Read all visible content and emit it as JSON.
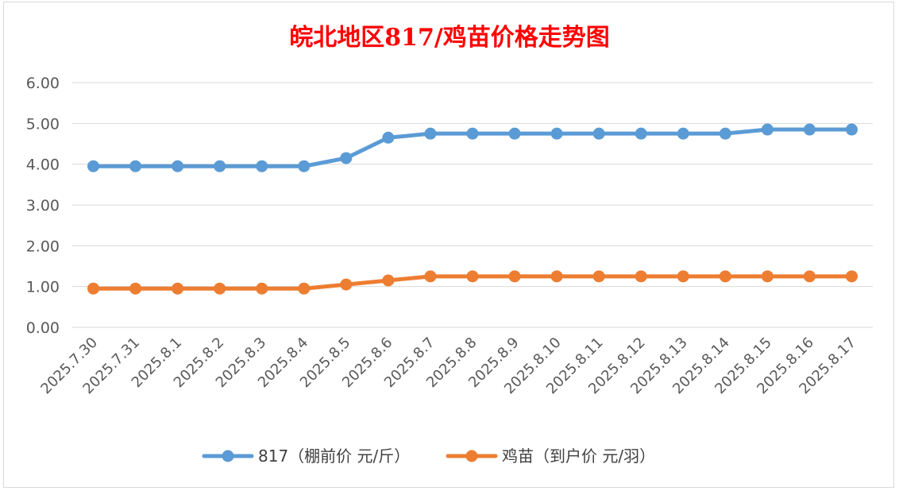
{
  "chart_data": {
    "type": "line",
    "title": "皖北地区817/鸡苗价格走势图",
    "xlabel": "",
    "ylabel": "",
    "ylim": [
      0,
      6
    ],
    "yticks": [
      "0.00",
      "1.00",
      "2.00",
      "3.00",
      "4.00",
      "5.00",
      "6.00"
    ],
    "grid": true,
    "legend_position": "bottom",
    "categories": [
      "2025.7.30",
      "2025.7.31",
      "2025.8.1",
      "2025.8.2",
      "2025.8.3",
      "2025.8.4",
      "2025.8.5",
      "2025.8.6",
      "2025.8.7",
      "2025.8.8",
      "2025.8.9",
      "2025.8.10",
      "2025.8.11",
      "2025.8.12",
      "2025.8.13",
      "2025.8.14",
      "2025.8.15",
      "2025.8.16",
      "2025.8.17"
    ],
    "series": [
      {
        "name": "817（棚前价 元/斤）",
        "color": "#5b9bd5",
        "values": [
          3.95,
          3.95,
          3.95,
          3.95,
          3.95,
          3.95,
          4.15,
          4.65,
          4.75,
          4.75,
          4.75,
          4.75,
          4.75,
          4.75,
          4.75,
          4.75,
          4.85,
          4.85,
          4.85
        ]
      },
      {
        "name": "鸡苗（到户价 元/羽）",
        "color": "#ed7d31",
        "values": [
          0.95,
          0.95,
          0.95,
          0.95,
          0.95,
          0.95,
          1.05,
          1.15,
          1.25,
          1.25,
          1.25,
          1.25,
          1.25,
          1.25,
          1.25,
          1.25,
          1.25,
          1.25,
          1.25
        ]
      }
    ]
  }
}
